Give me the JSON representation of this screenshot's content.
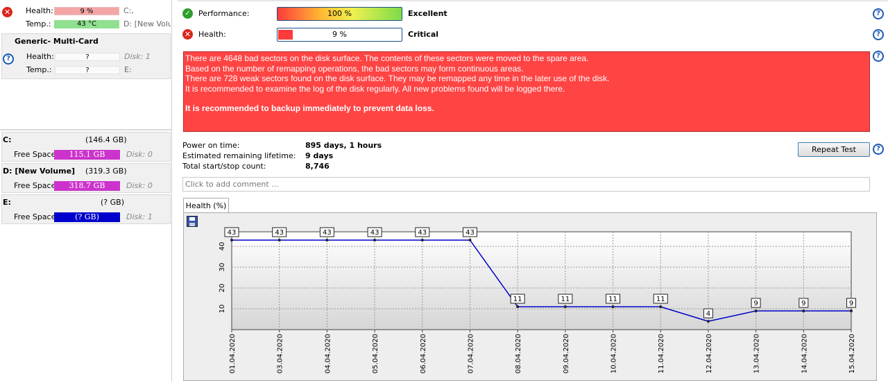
{
  "left_panel": {
    "disk1": {
      "health_label": "Health:",
      "health_value": "9 %",
      "health_drive": "C:,",
      "temp_label": "Temp.:",
      "temp_value": "43 °C",
      "temp_drive": "D: [New Volu"
    },
    "disk2": {
      "title": "Generic- Multi-Card",
      "health_label": "Health:",
      "health_value": "?",
      "health_drive": "Disk: 1",
      "temp_label": "Temp.:",
      "temp_value": "?",
      "temp_drive": "E:"
    },
    "volumes": [
      {
        "name": "C:",
        "size": "(146.4 GB)",
        "free_label": "Free Space",
        "free_value": "115.1 GB",
        "disk": "Disk: 0",
        "bar_color": "#cc33cc"
      },
      {
        "name": "D: [New Volume]",
        "size": "(319.3 GB)",
        "free_label": "Free Space",
        "free_value": "318.7 GB",
        "disk": "Disk: 0",
        "bar_color": "#cc33cc"
      },
      {
        "name": "E:",
        "size": "(? GB)",
        "free_label": "Free Space",
        "free_value": "(? GB)",
        "disk": "Disk: 1",
        "bar_color": "#0000cc"
      }
    ]
  },
  "status": {
    "performance_label": "Performance:",
    "performance_value": "100 %",
    "performance_text": "Excellent",
    "performance_fraction": 1.0,
    "health_label": "Health:",
    "health_value": "9 %",
    "health_text": "Critical",
    "health_fraction": 0.09
  },
  "alert": {
    "lines": [
      "There are 4648 bad sectors on the disk surface. The contents of these sectors were moved to the spare area.",
      "Based on the number of remapping operations, the bad sectors may form continuous areas.",
      "There are 728 weak sectors found on the disk surface. They may be remapped any time in the later use of the disk.",
      "It is recommended to examine the log of the disk regularly. All new problems found will be logged there."
    ],
    "recommendation": "It is recommended to backup immediately to prevent data loss."
  },
  "info": {
    "power_on_label": "Power on time:",
    "power_on_value": "895 days, 1 hours",
    "lifetime_label": "Estimated remaining lifetime:",
    "lifetime_value": "9 days",
    "startstop_label": "Total start/stop count:",
    "startstop_value": "8,746"
  },
  "repeat_test_label": "Repeat Test",
  "comment_placeholder": "Click to add comment ...",
  "tab_label": "Health (%)",
  "chart_data": {
    "type": "line",
    "x": [
      "01.04.2020",
      "03.04.2020",
      "04.04.2020",
      "05.04.2020",
      "06.04.2020",
      "07.04.2020",
      "08.04.2020",
      "09.04.2020",
      "10.04.2020",
      "11.04.2020",
      "12.04.2020",
      "13.04.2020",
      "14.04.2020",
      "15.04.2020"
    ],
    "values": [
      43,
      43,
      43,
      43,
      43,
      43,
      11,
      11,
      11,
      11,
      4,
      9,
      9,
      9
    ],
    "yticks": [
      10,
      20,
      30,
      40
    ],
    "ylim": [
      0,
      47
    ],
    "grid": true,
    "line_color": "#0000cc"
  }
}
